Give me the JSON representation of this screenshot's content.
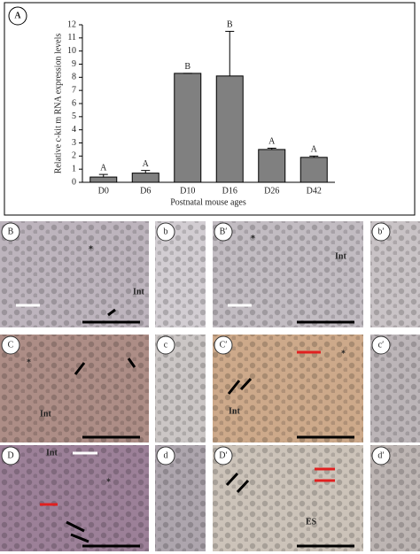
{
  "chart_data": {
    "type": "bar",
    "panel_label": "A",
    "ylabel": "Relative c-kit m RNA expression levels",
    "xlabel": "Postnatal mouse ages",
    "categories": [
      "D0",
      "D6",
      "D10",
      "D16",
      "D26",
      "D42"
    ],
    "values": [
      0.4,
      0.7,
      8.3,
      8.1,
      2.5,
      1.9
    ],
    "errors": [
      0.2,
      0.2,
      0,
      3.4,
      0.1,
      0.1
    ],
    "letters": [
      "A",
      "A",
      "B",
      "B",
      "A",
      "A"
    ],
    "color": "#808080",
    "ylim": [
      0,
      12
    ],
    "yticks": [
      0,
      1,
      2,
      3,
      4,
      5,
      6,
      7,
      8,
      9,
      10,
      11,
      12
    ]
  },
  "panels": [
    {
      "label": "B",
      "annotations": [
        "*",
        "Int"
      ]
    },
    {
      "label": "b"
    },
    {
      "label": "B′",
      "annotations": [
        "*",
        "Int"
      ]
    },
    {
      "label": "b′"
    },
    {
      "label": "C",
      "annotations": [
        "*",
        "Int"
      ]
    },
    {
      "label": "c"
    },
    {
      "label": "C′",
      "annotations": [
        "*",
        "Int"
      ]
    },
    {
      "label": "c′"
    },
    {
      "label": "D",
      "annotations": [
        "Int",
        "*"
      ]
    },
    {
      "label": "d"
    },
    {
      "label": "D′",
      "annotations": [
        "ES"
      ]
    },
    {
      "label": "d′"
    }
  ]
}
